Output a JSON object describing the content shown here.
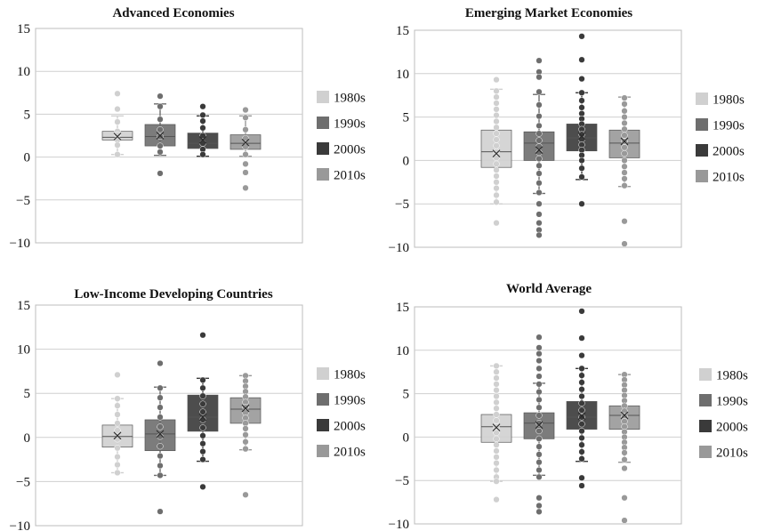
{
  "chart_data": [
    {
      "type": "box",
      "title": "Advanced Economies",
      "xlabel": "",
      "ylabel": "",
      "ylim": [
        -10,
        15
      ],
      "yticks": [
        "15",
        "10",
        "5",
        "0",
        "−5",
        "−10"
      ],
      "grid": true,
      "legend_position": "right",
      "series": [
        {
          "name": "1980s",
          "color": "#d0d0d0",
          "q1": 2.0,
          "median": 2.3,
          "q3": 3.0,
          "mean": 2.4,
          "whisker_low": 0.3,
          "whisker_high": 4.8,
          "points": [
            7.4,
            5.6,
            4.1,
            3.0,
            2.6,
            2.0,
            1.4,
            0.3
          ]
        },
        {
          "name": "1990s",
          "color": "#6e6e6e",
          "q1": 1.3,
          "median": 2.4,
          "q3": 3.8,
          "mean": 2.5,
          "whisker_low": 0.2,
          "whisker_high": 6.2,
          "points": [
            7.1,
            5.9,
            4.4,
            3.2,
            2.4,
            1.3,
            0.6,
            -1.9
          ]
        },
        {
          "name": "2000s",
          "color": "#3a3a3a",
          "q1": 1.0,
          "median": 1.6,
          "q3": 2.8,
          "mean": 2.0,
          "whisker_low": 0.1,
          "whisker_high": 4.8,
          "points": [
            5.9,
            4.9,
            4.2,
            3.4,
            2.5,
            1.6,
            0.9,
            0.3
          ]
        },
        {
          "name": "2010s",
          "color": "#999999",
          "q1": 0.9,
          "median": 1.6,
          "q3": 2.6,
          "mean": 1.7,
          "whisker_low": 0.1,
          "whisker_high": 4.8,
          "points": [
            5.5,
            4.6,
            3.2,
            2.2,
            1.2,
            0.3,
            -0.8,
            -1.8,
            -3.6
          ]
        }
      ]
    },
    {
      "type": "box",
      "title": "Emerging Market Economies",
      "xlabel": "",
      "ylabel": "",
      "ylim": [
        -10,
        15
      ],
      "yticks": [
        "15",
        "10",
        "5",
        "0",
        "−5",
        "−10"
      ],
      "grid": true,
      "legend_position": "right",
      "series": [
        {
          "name": "1980s",
          "color": "#d0d0d0",
          "q1": -0.8,
          "median": 1.0,
          "q3": 3.5,
          "mean": 0.8,
          "whisker_low": -5.0,
          "whisker_high": 8.2,
          "points": [
            9.3,
            8.0,
            7.3,
            6.6,
            5.9,
            5.2,
            4.5,
            3.8,
            3.1,
            2.4,
            1.7,
            1.0,
            0.3,
            -0.4,
            -1.1,
            -1.8,
            -2.5,
            -3.2,
            -4.0,
            -4.8,
            -7.2
          ]
        },
        {
          "name": "1990s",
          "color": "#6e6e6e",
          "q1": 0.0,
          "median": 2.0,
          "q3": 3.3,
          "mean": 1.2,
          "whisker_low": -3.8,
          "whisker_high": 7.6,
          "points": [
            11.5,
            10.2,
            9.6,
            7.9,
            6.4,
            5.1,
            4.0,
            3.1,
            2.3,
            1.6,
            0.9,
            0.2,
            -0.6,
            -1.5,
            -2.6,
            -3.7,
            -5.0,
            -6.2,
            -7.2,
            -8.0,
            -8.6
          ]
        },
        {
          "name": "2000s",
          "color": "#3a3a3a",
          "q1": 1.1,
          "median": 2.6,
          "q3": 4.2,
          "mean": 2.8,
          "whisker_low": -2.2,
          "whisker_high": 7.8,
          "points": [
            14.3,
            11.6,
            9.4,
            7.8,
            6.9,
            6.1,
            5.4,
            4.8,
            4.2,
            3.6,
            3.0,
            2.4,
            1.8,
            1.2,
            0.6,
            0.0,
            -0.9,
            -1.9,
            -5.0
          ]
        },
        {
          "name": "2010s",
          "color": "#999999",
          "q1": 0.3,
          "median": 2.0,
          "q3": 3.5,
          "mean": 2.2,
          "whisker_low": -3.0,
          "whisker_high": 7.3,
          "points": [
            7.2,
            6.5,
            5.7,
            5.0,
            4.3,
            3.6,
            2.9,
            2.2,
            1.5,
            0.8,
            0.0,
            -0.7,
            -1.4,
            -2.1,
            -2.9,
            -7.0,
            -9.6
          ]
        }
      ]
    },
    {
      "type": "box",
      "title": "Low-Income Developing Countries",
      "xlabel": "",
      "ylabel": "",
      "ylim": [
        -10,
        15
      ],
      "yticks": [
        "15",
        "10",
        "5",
        "0",
        "−5",
        "−10"
      ],
      "grid": true,
      "legend_position": "right",
      "series": [
        {
          "name": "1980s",
          "color": "#d0d0d0",
          "q1": -1.1,
          "median": 0.1,
          "q3": 1.4,
          "mean": 0.2,
          "whisker_low": -4.0,
          "whisker_high": 4.4,
          "points": [
            7.1,
            4.4,
            3.6,
            2.6,
            1.6,
            0.8,
            -0.2,
            -1.2,
            -2.2,
            -3.1,
            -4.0
          ]
        },
        {
          "name": "1990s",
          "color": "#6e6e6e",
          "q1": -1.5,
          "median": 0.4,
          "q3": 2.0,
          "mean": 0.4,
          "whisker_low": -4.3,
          "whisker_high": 5.7,
          "points": [
            8.4,
            5.6,
            4.5,
            3.4,
            2.3,
            1.2,
            0.1,
            -1.0,
            -2.1,
            -3.2,
            -4.3,
            -8.4
          ]
        },
        {
          "name": "2000s",
          "color": "#3a3a3a",
          "q1": 0.7,
          "median": 2.3,
          "q3": 4.8,
          "mean": 2.3,
          "whisker_low": -2.7,
          "whisker_high": 6.7,
          "points": [
            11.6,
            6.5,
            5.6,
            4.7,
            3.8,
            2.9,
            2.0,
            1.1,
            0.2,
            -0.7,
            -1.6,
            -2.5,
            -5.6
          ]
        },
        {
          "name": "2010s",
          "color": "#999999",
          "q1": 1.6,
          "median": 3.2,
          "q3": 4.5,
          "mean": 3.3,
          "whisker_low": -1.4,
          "whisker_high": 7.0,
          "points": [
            7.0,
            6.4,
            5.8,
            5.2,
            4.6,
            4.0,
            3.4,
            2.8,
            2.2,
            1.6,
            1.0,
            0.3,
            -0.5,
            -1.3,
            -6.5
          ]
        }
      ]
    },
    {
      "type": "box",
      "title": "World Average",
      "xlabel": "",
      "ylabel": "",
      "ylim": [
        -10,
        15
      ],
      "yticks": [
        "15",
        "10",
        "5",
        "0",
        "−5",
        "−10"
      ],
      "grid": true,
      "legend_position": "right",
      "series": [
        {
          "name": "1980s",
          "color": "#d0d0d0",
          "q1": -0.6,
          "median": 1.2,
          "q3": 2.6,
          "mean": 1.1,
          "whisker_low": -5.1,
          "whisker_high": 8.2,
          "points": [
            8.2,
            7.5,
            6.8,
            6.1,
            5.4,
            4.7,
            4.0,
            3.3,
            2.6,
            1.9,
            1.2,
            0.5,
            -0.2,
            -0.9,
            -1.6,
            -2.3,
            -3.0,
            -3.8,
            -4.6,
            -5.1,
            -7.2
          ]
        },
        {
          "name": "1990s",
          "color": "#6e6e6e",
          "q1": -0.2,
          "median": 1.6,
          "q3": 2.8,
          "mean": 1.4,
          "whisker_low": -4.4,
          "whisker_high": 6.2,
          "points": [
            11.5,
            10.3,
            9.6,
            8.8,
            7.9,
            7.0,
            6.1,
            5.2,
            4.3,
            3.4,
            2.5,
            1.6,
            0.7,
            -0.2,
            -1.1,
            -2.0,
            -2.9,
            -3.8,
            -4.6,
            -7.0,
            -7.9,
            -8.6
          ]
        },
        {
          "name": "2000s",
          "color": "#3a3a3a",
          "q1": 0.9,
          "median": 2.3,
          "q3": 4.1,
          "mean": 2.4,
          "whisker_low": -2.8,
          "whisker_high": 7.9,
          "points": [
            14.5,
            11.4,
            9.4,
            7.9,
            7.1,
            6.3,
            5.5,
            4.7,
            3.9,
            3.1,
            2.3,
            1.5,
            0.7,
            -0.1,
            -0.9,
            -1.7,
            -2.5,
            -4.7,
            -5.6
          ]
        },
        {
          "name": "2010s",
          "color": "#999999",
          "q1": 0.9,
          "median": 2.5,
          "q3": 3.6,
          "mean": 2.5,
          "whisker_low": -2.9,
          "whisker_high": 7.2,
          "points": [
            7.2,
            6.6,
            6.0,
            5.4,
            4.8,
            4.2,
            3.6,
            3.0,
            2.4,
            1.8,
            1.2,
            0.6,
            0.0,
            -0.6,
            -1.2,
            -1.8,
            -2.6,
            -3.6,
            -7.0,
            -9.6
          ]
        }
      ]
    }
  ]
}
